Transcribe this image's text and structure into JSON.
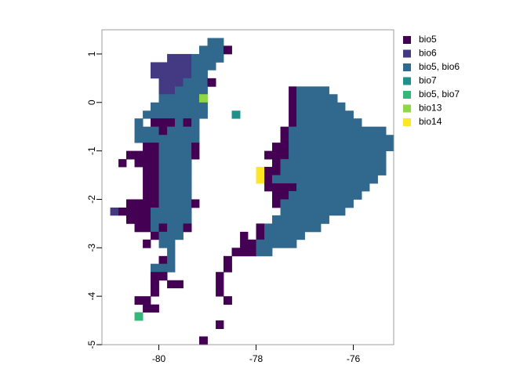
{
  "chart_data": {
    "type": "raster",
    "xlim": [
      -81.17,
      -75.17
    ],
    "ylim": [
      -5,
      1.5
    ],
    "xticks": [
      -80,
      -78,
      -76
    ],
    "yticks": [
      -5,
      -4,
      -3,
      -2,
      -1,
      0,
      1
    ],
    "classes": [
      {
        "name": "bio5",
        "color": "#440154"
      },
      {
        "name": "bio6",
        "color": "#443a83"
      },
      {
        "name": "bio5, bio6",
        "color": "#31688e"
      },
      {
        "name": "bio7",
        "color": "#21908c"
      },
      {
        "name": "bio5, bio7",
        "color": "#35b779"
      },
      {
        "name": "bio13",
        "color": "#8fd744"
      },
      {
        "name": "bio14",
        "color": "#fde725"
      }
    ],
    "rows": [
      {
        "lat": [
          1.17,
          1.33
        ],
        "runs": [
          [
            -79.0,
            -78.67,
            2
          ]
        ]
      },
      {
        "lat": [
          1.0,
          1.17
        ],
        "runs": [
          [
            -79.17,
            -78.67,
            2
          ],
          [
            -78.67,
            -78.5,
            0
          ]
        ]
      },
      {
        "lat": [
          0.83,
          1.0
        ],
        "runs": [
          [
            -79.83,
            -79.33,
            1
          ],
          [
            -79.33,
            -78.67,
            2
          ]
        ]
      },
      {
        "lat": [
          0.67,
          0.83
        ],
        "runs": [
          [
            -80.17,
            -79.33,
            1
          ],
          [
            -79.33,
            -78.83,
            2
          ]
        ]
      },
      {
        "lat": [
          0.5,
          0.67
        ],
        "runs": [
          [
            -80.17,
            -79.33,
            1
          ],
          [
            -79.33,
            -79.0,
            2
          ]
        ]
      },
      {
        "lat": [
          0.33,
          0.5
        ],
        "runs": [
          [
            -80.0,
            -79.5,
            1
          ],
          [
            -79.5,
            -79.0,
            2
          ],
          [
            -79.0,
            -78.83,
            0
          ]
        ]
      },
      {
        "lat": [
          0.17,
          0.33
        ],
        "runs": [
          [
            -80.0,
            -79.67,
            1
          ],
          [
            -79.67,
            -79.0,
            2
          ],
          [
            -77.33,
            -77.17,
            0
          ],
          [
            -77.17,
            -76.5,
            2
          ]
        ]
      },
      {
        "lat": [
          0,
          0.17
        ],
        "runs": [
          [
            -80.0,
            -79.17,
            2
          ],
          [
            -79.17,
            -79.0,
            5
          ],
          [
            -77.33,
            -77.17,
            0
          ],
          [
            -77.17,
            -76.33,
            2
          ]
        ]
      },
      {
        "lat": [
          -0.17,
          0
        ],
        "runs": [
          [
            -80.17,
            -79.0,
            2
          ],
          [
            -77.33,
            -77.17,
            0
          ],
          [
            -77.17,
            -76.17,
            2
          ]
        ]
      },
      {
        "lat": [
          -0.33,
          -0.17
        ],
        "runs": [
          [
            -80.33,
            -79.0,
            2
          ],
          [
            -78.5,
            -78.33,
            3
          ],
          [
            -77.33,
            -77.17,
            0
          ],
          [
            -77.17,
            -76.0,
            2
          ]
        ]
      },
      {
        "lat": [
          -0.5,
          -0.33
        ],
        "runs": [
          [
            -80.5,
            -80.33,
            2
          ],
          [
            -80.17,
            -79.67,
            0
          ],
          [
            -79.67,
            -79.5,
            2
          ],
          [
            -79.5,
            -79.33,
            0
          ],
          [
            -79.33,
            -79.17,
            2
          ],
          [
            -77.33,
            -77.17,
            0
          ],
          [
            -77.17,
            -75.83,
            2
          ]
        ]
      },
      {
        "lat": [
          -0.67,
          -0.5
        ],
        "runs": [
          [
            -80.5,
            -80.0,
            2
          ],
          [
            -80.0,
            -79.83,
            0
          ],
          [
            -79.83,
            -79.17,
            2
          ],
          [
            -77.5,
            -77.33,
            0
          ],
          [
            -77.33,
            -75.33,
            2
          ]
        ]
      },
      {
        "lat": [
          -0.83,
          -0.67
        ],
        "runs": [
          [
            -80.5,
            -79.17,
            2
          ],
          [
            -77.5,
            -77.33,
            0
          ],
          [
            -77.33,
            -75.17,
            2
          ]
        ]
      },
      {
        "lat": [
          -1.0,
          -0.83
        ],
        "runs": [
          [
            -80.33,
            -80.0,
            0
          ],
          [
            -80.0,
            -79.33,
            2
          ],
          [
            -79.33,
            -79.17,
            0
          ],
          [
            -77.67,
            -77.33,
            0
          ],
          [
            -77.33,
            -75.17,
            2
          ]
        ]
      },
      {
        "lat": [
          -1.17,
          -1.0
        ],
        "runs": [
          [
            -80.67,
            -80.0,
            0
          ],
          [
            -80.0,
            -79.33,
            2
          ],
          [
            -79.33,
            -79.17,
            0
          ],
          [
            -77.83,
            -77.33,
            0
          ],
          [
            -77.33,
            -75.33,
            2
          ]
        ]
      },
      {
        "lat": [
          -1.33,
          -1.17
        ],
        "runs": [
          [
            -80.83,
            -80.67,
            0
          ],
          [
            -80.5,
            -80.0,
            0
          ],
          [
            -80.0,
            -79.33,
            2
          ],
          [
            -77.67,
            -77.5,
            0
          ],
          [
            -77.5,
            -75.33,
            2
          ]
        ]
      },
      {
        "lat": [
          -1.5,
          -1.33
        ],
        "runs": [
          [
            -80.33,
            -80.0,
            0
          ],
          [
            -80.0,
            -79.33,
            2
          ],
          [
            -78.0,
            -77.83,
            6
          ],
          [
            -77.83,
            -77.5,
            0
          ],
          [
            -77.5,
            -75.33,
            2
          ]
        ]
      },
      {
        "lat": [
          -1.67,
          -1.5
        ],
        "runs": [
          [
            -80.33,
            -80.0,
            0
          ],
          [
            -80.0,
            -79.33,
            2
          ],
          [
            -78.0,
            -77.83,
            6
          ],
          [
            -77.83,
            -77.67,
            0
          ],
          [
            -77.67,
            -75.5,
            2
          ]
        ]
      },
      {
        "lat": [
          -1.83,
          -1.67
        ],
        "runs": [
          [
            -80.33,
            -80.0,
            0
          ],
          [
            -80.0,
            -79.33,
            2
          ],
          [
            -77.83,
            -77.17,
            0
          ],
          [
            -77.17,
            -75.67,
            2
          ]
        ]
      },
      {
        "lat": [
          -2.0,
          -1.83
        ],
        "runs": [
          [
            -80.33,
            -80.0,
            0
          ],
          [
            -80.0,
            -79.33,
            2
          ],
          [
            -77.67,
            -77.33,
            0
          ],
          [
            -77.33,
            -75.83,
            2
          ]
        ]
      },
      {
        "lat": [
          -2.17,
          -2.0
        ],
        "runs": [
          [
            -80.67,
            -80.0,
            0
          ],
          [
            -80.0,
            -79.33,
            2
          ],
          [
            -79.33,
            -79.17,
            0
          ],
          [
            -77.67,
            -77.5,
            0
          ],
          [
            -77.5,
            -76.0,
            2
          ]
        ]
      },
      {
        "lat": [
          -2.33,
          -2.17
        ],
        "runs": [
          [
            -81.0,
            -80.83,
            1
          ],
          [
            -80.83,
            -80.17,
            0
          ],
          [
            -80.17,
            -79.33,
            2
          ],
          [
            -77.5,
            -76.17,
            2
          ]
        ]
      },
      {
        "lat": [
          -2.5,
          -2.33
        ],
        "runs": [
          [
            -80.67,
            -80.17,
            0
          ],
          [
            -80.17,
            -79.33,
            2
          ],
          [
            -77.67,
            -76.5,
            2
          ]
        ]
      },
      {
        "lat": [
          -2.67,
          -2.5
        ],
        "runs": [
          [
            -80.5,
            -80.17,
            0
          ],
          [
            -80.17,
            -80.0,
            2
          ],
          [
            -80.0,
            -79.83,
            0
          ],
          [
            -79.83,
            -79.5,
            2
          ],
          [
            -79.5,
            -79.33,
            0
          ],
          [
            -78.0,
            -77.83,
            0
          ],
          [
            -77.83,
            -76.67,
            2
          ]
        ]
      },
      {
        "lat": [
          -2.83,
          -2.67
        ],
        "runs": [
          [
            -80.17,
            -80.0,
            0
          ],
          [
            -80.0,
            -79.5,
            2
          ],
          [
            -78.33,
            -78.17,
            0
          ],
          [
            -78.0,
            -77.83,
            0
          ],
          [
            -77.83,
            -77.0,
            2
          ]
        ]
      },
      {
        "lat": [
          -3.0,
          -2.83
        ],
        "runs": [
          [
            -80.33,
            -80.17,
            0
          ],
          [
            -80.0,
            -79.67,
            2
          ],
          [
            -78.33,
            -78.0,
            0
          ],
          [
            -78.0,
            -77.17,
            2
          ]
        ]
      },
      {
        "lat": [
          -3.17,
          -3.0
        ],
        "runs": [
          [
            -79.83,
            -79.67,
            2
          ],
          [
            -78.5,
            -78.0,
            0
          ],
          [
            -78.0,
            -77.67,
            2
          ]
        ]
      },
      {
        "lat": [
          -3.33,
          -3.17
        ],
        "runs": [
          [
            -80.0,
            -79.83,
            0
          ],
          [
            -79.83,
            -79.67,
            2
          ],
          [
            -78.67,
            -78.5,
            0
          ]
        ]
      },
      {
        "lat": [
          -3.5,
          -3.33
        ],
        "runs": [
          [
            -80.17,
            -79.67,
            2
          ],
          [
            -78.67,
            -78.5,
            0
          ]
        ]
      },
      {
        "lat": [
          -3.67,
          -3.5
        ],
        "runs": [
          [
            -80.17,
            -79.83,
            0
          ],
          [
            -78.83,
            -78.67,
            0
          ]
        ]
      },
      {
        "lat": [
          -3.83,
          -3.67
        ],
        "runs": [
          [
            -80.17,
            -80.0,
            0
          ],
          [
            -79.83,
            -79.5,
            0
          ],
          [
            -78.83,
            -78.67,
            0
          ]
        ]
      },
      {
        "lat": [
          -4.0,
          -3.83
        ],
        "runs": [
          [
            -80.17,
            -80.0,
            0
          ],
          [
            -78.83,
            -78.67,
            0
          ]
        ]
      },
      {
        "lat": [
          -4.17,
          -4.0
        ],
        "runs": [
          [
            -80.5,
            -80.17,
            0
          ],
          [
            -78.67,
            -78.5,
            0
          ]
        ]
      },
      {
        "lat": [
          -4.33,
          -4.17
        ],
        "runs": [
          [
            -80.33,
            -80.0,
            0
          ]
        ]
      },
      {
        "lat": [
          -4.5,
          -4.33
        ],
        "runs": [
          [
            -80.5,
            -80.33,
            4
          ]
        ]
      },
      {
        "lat": [
          -4.67,
          -4.5
        ],
        "runs": [
          [
            -78.83,
            -78.67,
            0
          ]
        ]
      },
      {
        "lat": [
          -5.0,
          -4.83
        ],
        "runs": [
          [
            -79.17,
            -79.0,
            0
          ]
        ]
      }
    ]
  }
}
